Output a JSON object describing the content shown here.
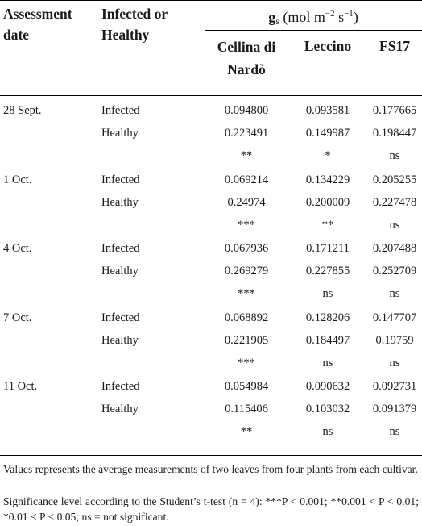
{
  "header": {
    "assessment_date": "Assessment date",
    "infected_or_healthy": "Infected or Healthy",
    "gs_label": "g",
    "gs_sub": "s",
    "gs_unit_pre": "(mol m",
    "gs_exp1": "−2",
    "gs_mid": " s",
    "gs_exp2": "−1",
    "gs_close": ")",
    "cultivars": [
      "Cellina di Nardò",
      "Leccino",
      "FS17"
    ]
  },
  "rows": [
    {
      "date": "28 Sept.",
      "infected": [
        "0.094800",
        "0.093581",
        "0.177665"
      ],
      "healthy": [
        "0.223491",
        "0.149987",
        "0.198447"
      ],
      "sig": [
        "**",
        "*",
        "ns"
      ]
    },
    {
      "date": "1 Oct.",
      "infected": [
        "0.069214",
        "0.134229",
        "0.205255"
      ],
      "healthy": [
        "0.24974",
        "0.200009",
        "0.227478"
      ],
      "sig": [
        "***",
        "**",
        "ns"
      ]
    },
    {
      "date": "4 Oct.",
      "infected": [
        "0.067936",
        "0.171211",
        "0.207488"
      ],
      "healthy": [
        "0.269279",
        "0.227855",
        "0.252709"
      ],
      "sig": [
        "***",
        "ns",
        "ns"
      ]
    },
    {
      "date": "7 Oct.",
      "infected": [
        "0.068892",
        "0.128206",
        "0.147707"
      ],
      "healthy": [
        "0.221905",
        "0.184497",
        "0.19759"
      ],
      "sig": [
        "***",
        "ns",
        "ns"
      ]
    },
    {
      "date": "11 Oct.",
      "infected": [
        "0.054984",
        "0.090632",
        "0.092731"
      ],
      "healthy": [
        "0.115406",
        "0.103032",
        "0.091379"
      ],
      "sig": [
        "**",
        "ns",
        "ns"
      ]
    }
  ],
  "labels": {
    "infected": "Infected",
    "healthy": "Healthy"
  },
  "notes": [
    "Values represents the average measurements of two leaves from four plants from each cultivar.",
    "Significance level according to the Student’s t-test (n = 4): ***P < 0.001; **0.001 < P < 0.01; *0.01 < P < 0.05; ns = not significant."
  ]
}
